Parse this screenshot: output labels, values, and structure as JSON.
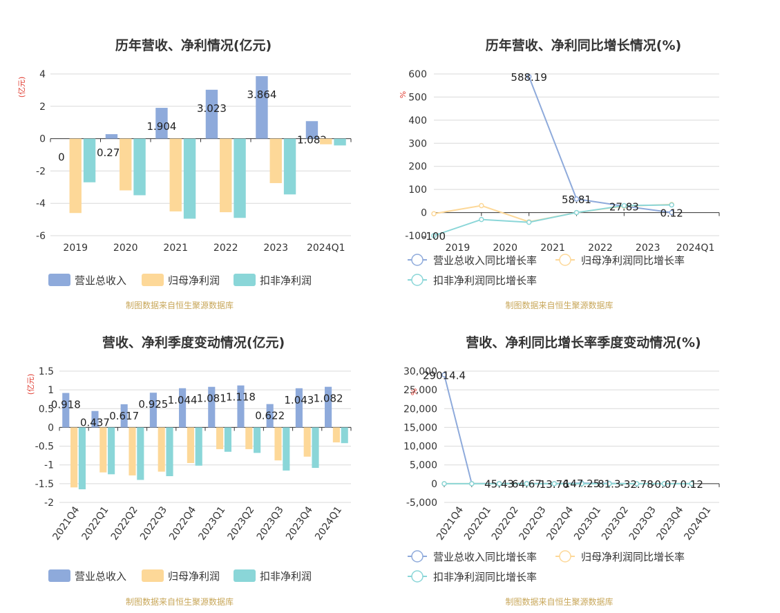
{
  "chart_data": [
    {
      "type": "bar",
      "title": "历年营收、净利情况(亿元)",
      "ylabel": "(亿元)",
      "categories": [
        "2019",
        "2020",
        "2021",
        "2022",
        "2023",
        "2024Q1"
      ],
      "ylim": [
        -6,
        4
      ],
      "yticks": [
        4,
        2,
        0,
        -2,
        -4,
        -6
      ],
      "series": [
        {
          "name": "营业总收入",
          "color": "#8eaadb",
          "values": [
            0,
            0.277,
            1.904,
            3.023,
            3.864,
            1.082
          ],
          "labels": [
            "0",
            "0.277",
            "1.904",
            "3.023",
            "3.864",
            "1.082"
          ]
        },
        {
          "name": "归母净利润",
          "color": "#fdd898",
          "values": [
            -4.6,
            -3.2,
            -4.5,
            -4.55,
            -2.75,
            -0.35
          ]
        },
        {
          "name": "扣非净利润",
          "color": "#8ad6d8",
          "values": [
            -2.7,
            -3.5,
            -4.95,
            -4.9,
            -3.45,
            -0.42
          ]
        }
      ],
      "source": "制图数据来自恒生聚源数据库"
    },
    {
      "type": "line",
      "title": "历年营收、净利同比增长情况(%)",
      "ylabel": "%",
      "categories": [
        "2019",
        "2020",
        "2021",
        "2022",
        "2023",
        "2024Q1"
      ],
      "ylim": [
        -100,
        600
      ],
      "yticks": [
        600,
        500,
        400,
        300,
        200,
        100,
        0,
        -100
      ],
      "series": [
        {
          "name": "营业总收入同比增长率",
          "color": "#8eaadb",
          "values": [
            null,
            null,
            588.19,
            58.81,
            27.83,
            0.12
          ]
        },
        {
          "name": "归母净利润同比增长率",
          "color": "#fdd898",
          "values": [
            -5,
            30,
            -40,
            0,
            28,
            35
          ]
        },
        {
          "name": "扣非净利润同比增长率",
          "color": "#8ad6d8",
          "values": [
            -100,
            -30,
            -42,
            0,
            30,
            33
          ]
        }
      ],
      "annotations": [
        {
          "text": "-100",
          "x": "2019",
          "y": -100
        },
        {
          "text": "588.19",
          "x": "2021",
          "y": 588.19
        },
        {
          "text": "58.81",
          "x": "2022",
          "y": 58.81
        },
        {
          "text": "27.83",
          "x": "2023",
          "y": 27.83
        },
        {
          "text": "0.12",
          "x": "2024Q1",
          "y": 0.12
        }
      ],
      "source": "制图数据来自恒生聚源数据库"
    },
    {
      "type": "bar",
      "title": "营收、净利季度变动情况(亿元)",
      "ylabel": "(亿元)",
      "categories": [
        "2021Q4",
        "2022Q1",
        "2022Q2",
        "2022Q3",
        "2022Q4",
        "2023Q1",
        "2023Q2",
        "2023Q3",
        "2023Q4",
        "2024Q1"
      ],
      "ylim": [
        -2,
        1.5
      ],
      "yticks": [
        1.5,
        1,
        0.5,
        0,
        -0.5,
        -1,
        -1.5,
        -2
      ],
      "series": [
        {
          "name": "营业总收入",
          "color": "#8eaadb",
          "values": [
            0.918,
            0.437,
            0.617,
            0.925,
            1.044,
            1.081,
            1.118,
            0.622,
            1.043,
            1.082
          ],
          "labels": [
            "0.918",
            "0.437",
            "0.617",
            "0.925",
            "1.044",
            "1.081",
            "1.118",
            "0.622",
            "1.043",
            "1.082"
          ]
        },
        {
          "name": "归母净利润",
          "color": "#fdd898",
          "values": [
            -1.6,
            -1.2,
            -1.28,
            -1.18,
            -0.95,
            -0.58,
            -0.58,
            -0.88,
            -0.78,
            -0.4
          ]
        },
        {
          "name": "扣非净利润",
          "color": "#8ad6d8",
          "values": [
            -1.65,
            -1.25,
            -1.4,
            -1.3,
            -1.02,
            -0.65,
            -0.68,
            -1.15,
            -1.08,
            -0.42
          ]
        }
      ],
      "source": "制图数据来自恒生聚源数据库"
    },
    {
      "type": "line",
      "title": "营收、净利同比增长率季度变动情况(%)",
      "ylabel": "%",
      "categories": [
        "2021Q4",
        "2022Q1",
        "2022Q2",
        "2022Q3",
        "2022Q4",
        "2023Q1",
        "2023Q2",
        "2023Q3",
        "2023Q4",
        "2024Q1"
      ],
      "ylim": [
        -5000,
        30000
      ],
      "yticks": [
        30000,
        25000,
        20000,
        15000,
        10000,
        5000,
        0,
        -5000
      ],
      "ytick_labels": [
        "30,000",
        "25,000",
        "20,000",
        "15,000",
        "10,000",
        "5,000",
        "0",
        "-5,000"
      ],
      "series": [
        {
          "name": "营业总收入同比增长率",
          "color": "#8eaadb",
          "values": [
            29014.4,
            20,
            45.43,
            64.67,
            13.76,
            147.25,
            81.3,
            -32.78,
            -0.07,
            0.12
          ]
        },
        {
          "name": "归母净利润同比增长率",
          "color": "#fdd898",
          "values": [
            0,
            0,
            0,
            0,
            0,
            0,
            0,
            0,
            0,
            0
          ]
        },
        {
          "name": "扣非净利润同比增长率",
          "color": "#8ad6d8",
          "values": [
            0,
            0,
            0,
            0,
            0,
            0,
            0,
            0,
            0,
            0
          ]
        }
      ],
      "annotations": [
        {
          "text": "29014.4",
          "x": "2021Q4",
          "y": 29014.4
        },
        {
          "text": "45.43",
          "x": "2022Q2",
          "y": 45.43
        },
        {
          "text": "64.67",
          "x": "2022Q3",
          "y": 64.67
        },
        {
          "text": "13.76",
          "x": "2022Q4",
          "y": 13.76
        },
        {
          "text": "147.25",
          "x": "2023Q1",
          "y": 147.25
        },
        {
          "text": "81.3",
          "x": "2023Q2",
          "y": 81.3
        },
        {
          "text": "-32.78",
          "x": "2023Q3",
          "y": -32.78
        },
        {
          "text": "-0.07",
          "x": "2023Q4",
          "y": -0.07
        },
        {
          "text": "0.12",
          "x": "2024Q1",
          "y": 0.12
        }
      ],
      "source": "制图数据来自恒生聚源数据库"
    }
  ]
}
